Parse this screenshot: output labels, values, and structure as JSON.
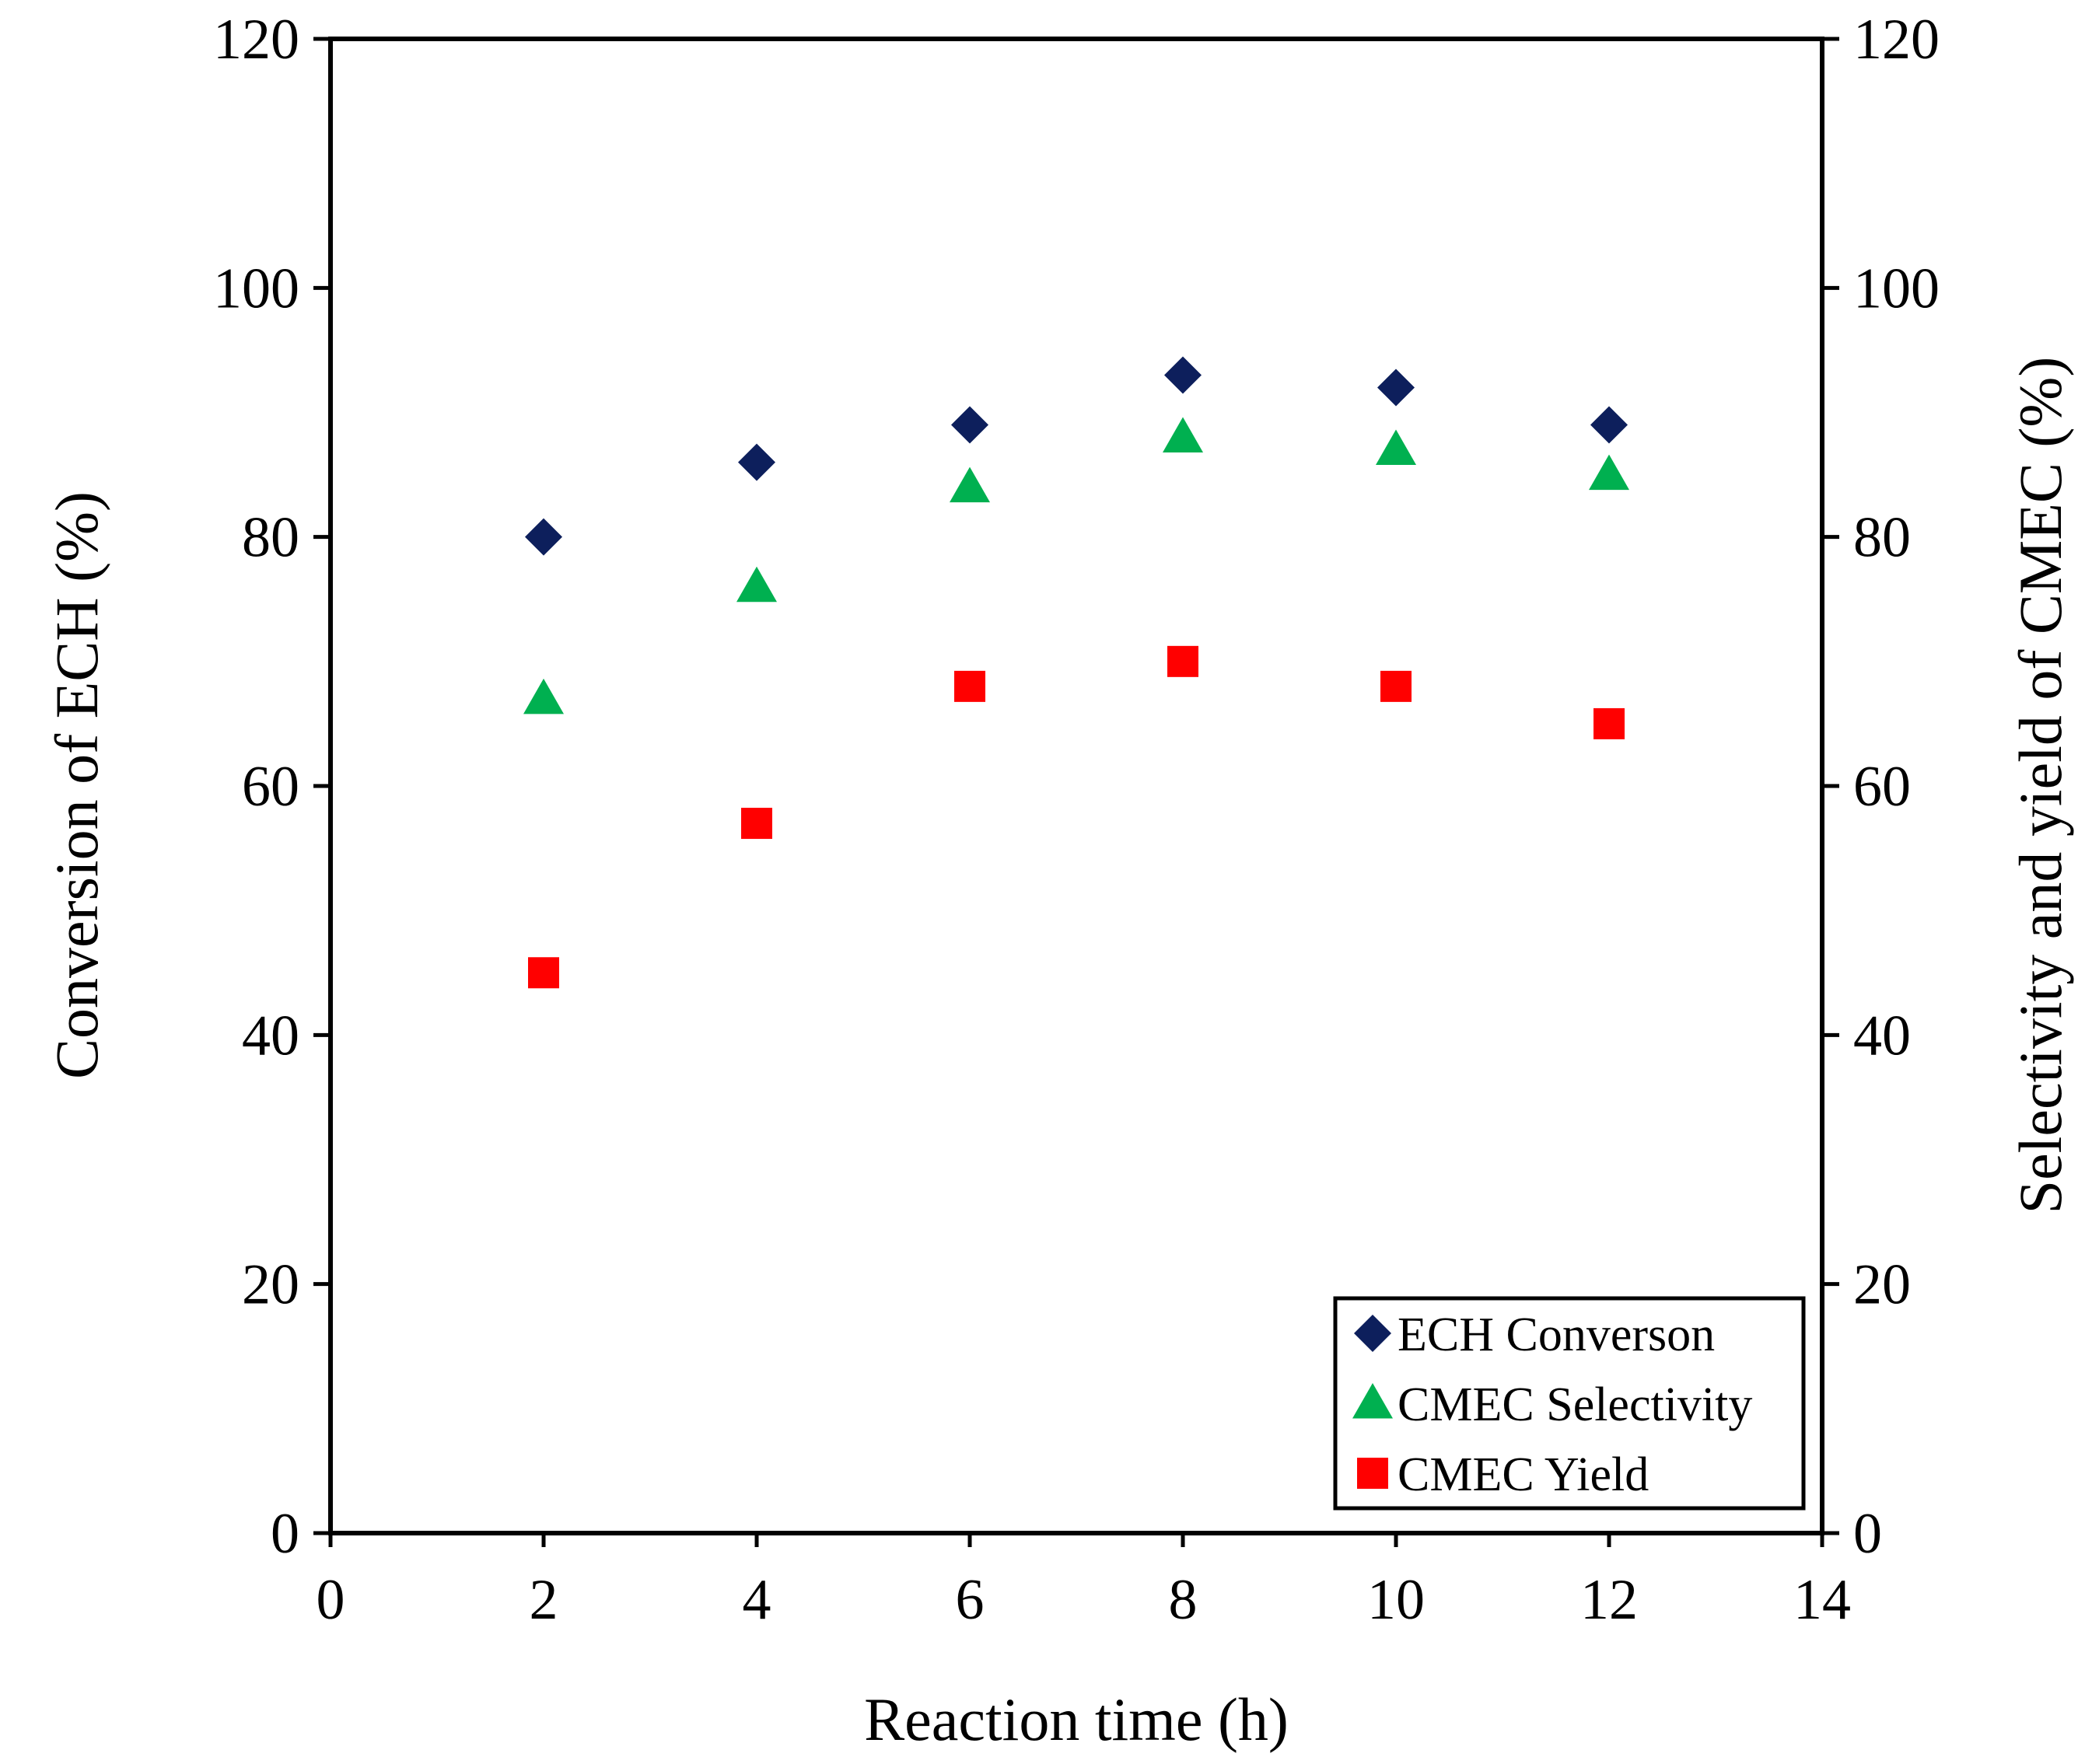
{
  "chart_data": {
    "type": "scatter",
    "xlabel": "Reaction time (h)",
    "ylabel": "Conversion of ECH (%)",
    "y2label": "Selectivity and yield of CMEC (%)",
    "xlim": [
      0,
      14
    ],
    "ylim": [
      0,
      120
    ],
    "y2lim": [
      0,
      120
    ],
    "xticks": [
      "0",
      "2",
      "4",
      "6",
      "8",
      "10",
      "12",
      "14"
    ],
    "yticks": [
      "0",
      "20",
      "40",
      "60",
      "80",
      "100",
      "120"
    ],
    "y2ticks": [
      "0",
      "20",
      "40",
      "60",
      "80",
      "100",
      "120"
    ],
    "grid": false,
    "legend_position": "bottom-right",
    "x": [
      2,
      4,
      6,
      8,
      10,
      12
    ],
    "series": [
      {
        "name": "ECH Converson",
        "marker": "diamond",
        "color": "#0D1F5C",
        "axis": "left",
        "values": [
          80,
          86,
          89,
          93,
          92,
          89
        ]
      },
      {
        "name": "CMEC Selectivity",
        "marker": "triangle",
        "color": "#00B050",
        "axis": "right",
        "values": [
          67,
          76,
          84,
          88,
          87,
          85
        ]
      },
      {
        "name": "CMEC Yield",
        "marker": "square",
        "color": "#FF0000",
        "axis": "right",
        "values": [
          45,
          57,
          68,
          70,
          68,
          65
        ]
      }
    ]
  }
}
